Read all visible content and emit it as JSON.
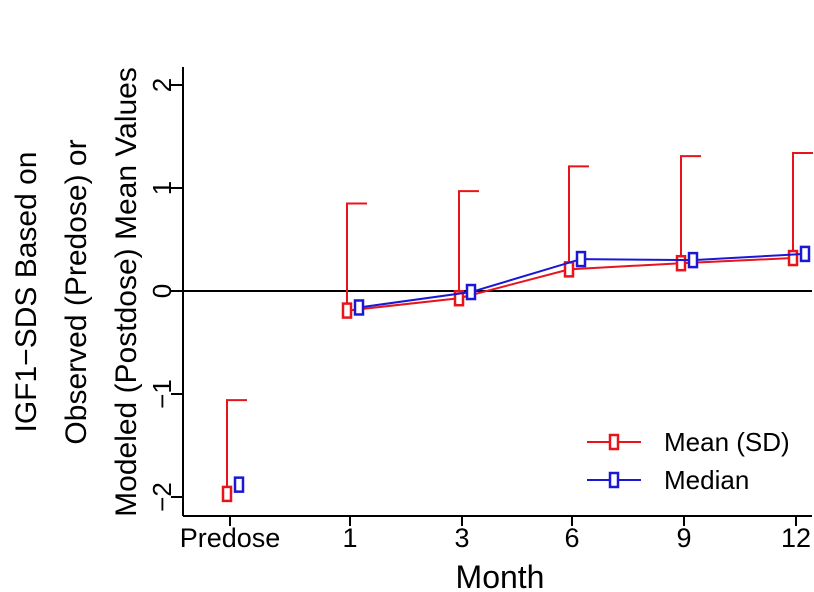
{
  "chart_data": {
    "type": "line",
    "xlabel": "Month",
    "ylabel_lines": [
      "IGF1−SDS Based on",
      "Observed (Predose) or",
      "Modeled (Postdose) Mean Values"
    ],
    "categories": [
      "Predose",
      "1",
      "3",
      "6",
      "9",
      "12"
    ],
    "yticks": [
      "−2",
      "−1",
      "0",
      "1",
      "2"
    ],
    "ytick_values": [
      -2,
      -1,
      0,
      1,
      2
    ],
    "ylim": [
      -2.2,
      2.2
    ],
    "reference_line_y": 0,
    "series": [
      {
        "name": "Mean (SD)",
        "color": "#e8141c",
        "values": [
          -1.97,
          -0.19,
          -0.07,
          0.21,
          0.27,
          0.32
        ],
        "sd_upper": [
          -1.06,
          0.85,
          0.97,
          1.21,
          1.31,
          1.34
        ],
        "connect_from_index": 1
      },
      {
        "name": "Median",
        "color": "#1a18d6",
        "values": [
          -1.88,
          -0.16,
          -0.01,
          0.31,
          0.3,
          0.36
        ],
        "connect_from_index": 1
      }
    ],
    "legend_position": "bottom-right",
    "grid": false
  }
}
